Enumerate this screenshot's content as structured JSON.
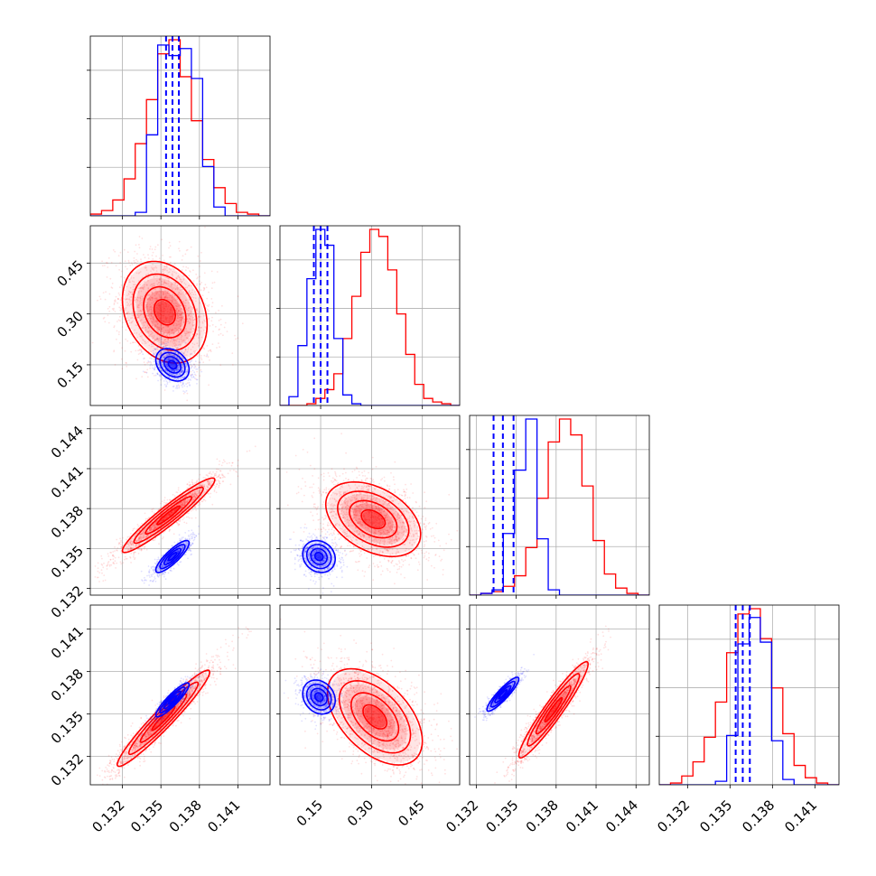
{
  "chart_data": {
    "type": "corner",
    "title": "",
    "grid": true,
    "colors": {
      "red": "#ff0000",
      "blue": "#0000ff",
      "grid": "#b0b0b0",
      "axis": "#000000"
    },
    "parameters": [
      {
        "range": [
          0.1295,
          0.1435
        ],
        "ticks": [
          0.132,
          0.135,
          0.138,
          0.141
        ],
        "tick_labels": [
          "0.132",
          "0.135",
          "0.138",
          "0.141"
        ]
      },
      {
        "range": [
          0.03,
          0.56
        ],
        "ticks": [
          0.15,
          0.3,
          0.45
        ],
        "tick_labels": [
          "0.15",
          "0.30",
          "0.45"
        ]
      },
      {
        "range": [
          0.1315,
          0.145
        ],
        "ticks": [
          0.132,
          0.135,
          0.138,
          0.141,
          0.144
        ],
        "tick_labels": [
          "0.132",
          "0.135",
          "0.138",
          "0.141",
          "0.144"
        ]
      },
      {
        "range": [
          0.13,
          0.1427
        ],
        "ticks": [
          0.132,
          0.135,
          0.138,
          0.141
        ],
        "tick_labels": [
          "0.132",
          "0.135",
          "0.138",
          "0.141"
        ]
      }
    ],
    "diagonal": [
      {
        "param": 0,
        "red_steps": [
          0.01,
          0.03,
          0.09,
          0.21,
          0.41,
          0.66,
          0.92,
          1.0,
          0.79,
          0.54,
          0.32,
          0.16,
          0.07,
          0.02,
          0.01,
          0
        ],
        "blue_steps": [
          0,
          0,
          0,
          0,
          0.02,
          0.46,
          0.97,
          0.91,
          0.95,
          0.78,
          0.28,
          0.05,
          0,
          0,
          0,
          0
        ],
        "blue_quantiles": [
          0.1354,
          0.1359,
          0.1364
        ]
      },
      {
        "param": 1,
        "red_steps": [
          0,
          0,
          0,
          0.01,
          0.04,
          0.09,
          0.18,
          0.38,
          0.62,
          0.87,
          1.0,
          0.96,
          0.77,
          0.52,
          0.29,
          0.12,
          0.04,
          0.02,
          0.01,
          0
        ],
        "blue_steps": [
          0,
          0.05,
          0.34,
          0.72,
          1.0,
          0.91,
          0.38,
          0.06,
          0.01,
          0,
          0,
          0,
          0,
          0,
          0,
          0,
          0,
          0,
          0,
          0
        ],
        "blue_quantiles": [
          0.13,
          0.15,
          0.17
        ]
      },
      {
        "param": 2,
        "red_steps": [
          0,
          0.01,
          0.02,
          0.05,
          0.11,
          0.27,
          0.55,
          0.87,
          1.0,
          0.91,
          0.62,
          0.31,
          0.12,
          0.04,
          0.01,
          0
        ],
        "blue_steps": [
          0,
          0.01,
          0.03,
          0.35,
          0.71,
          1.0,
          0.32,
          0.03,
          0,
          0,
          0,
          0,
          0,
          0,
          0,
          0
        ],
        "blue_quantiles": [
          0.1333,
          0.134,
          0.1348
        ]
      },
      {
        "param": 3,
        "red_steps": [
          0,
          0.01,
          0.05,
          0.13,
          0.27,
          0.47,
          0.75,
          0.97,
          1.0,
          0.83,
          0.55,
          0.29,
          0.11,
          0.04,
          0.01,
          0
        ],
        "blue_steps": [
          0,
          0,
          0,
          0,
          0,
          0.02,
          0.28,
          0.8,
          0.95,
          0.81,
          0.25,
          0.03,
          0,
          0,
          0,
          0
        ],
        "blue_quantiles": [
          0.1354,
          0.1359,
          0.1364
        ]
      }
    ],
    "pairs": [
      {
        "x": 0,
        "y": 1,
        "red": {
          "mean": [
            0.1353,
            0.305
          ],
          "sd": [
            0.00165,
            0.075
          ],
          "corr": -0.25,
          "n": 1700
        },
        "blue": {
          "mean": [
            0.1359,
            0.15
          ],
          "sd": [
            0.00065,
            0.024
          ],
          "corr": -0.3,
          "n": 900
        }
      },
      {
        "x": 0,
        "y": 2,
        "red": {
          "mean": [
            0.1356,
            0.1375
          ],
          "sd": [
            0.0018,
            0.0014
          ],
          "corr": 0.95,
          "n": 1700
        },
        "blue": {
          "mean": [
            0.1359,
            0.1344
          ],
          "sd": [
            0.00065,
            0.0006
          ],
          "corr": 0.85,
          "n": 900
        }
      },
      {
        "x": 0,
        "y": 3,
        "red": {
          "mean": [
            0.1352,
            0.1347
          ],
          "sd": [
            0.0018,
            0.0017
          ],
          "corr": 0.96,
          "n": 1700
        },
        "blue": {
          "mean": [
            0.1359,
            0.136
          ],
          "sd": [
            0.00065,
            0.0006
          ],
          "corr": 0.9,
          "n": 900
        }
      },
      {
        "x": 1,
        "y": 2,
        "red": {
          "mean": [
            0.305,
            0.1372
          ],
          "sd": [
            0.07,
            0.0014
          ],
          "corr": -0.4,
          "n": 1700
        },
        "blue": {
          "mean": [
            0.145,
            0.1344
          ],
          "sd": [
            0.024,
            0.0006
          ],
          "corr": -0.15,
          "n": 900
        }
      },
      {
        "x": 1,
        "y": 3,
        "red": {
          "mean": [
            0.31,
            0.1348
          ],
          "sd": [
            0.07,
            0.0017
          ],
          "corr": -0.5,
          "n": 1700
        },
        "blue": {
          "mean": [
            0.145,
            0.1362
          ],
          "sd": [
            0.024,
            0.0006
          ],
          "corr": -0.2,
          "n": 900
        }
      },
      {
        "x": 2,
        "y": 3,
        "red": {
          "mean": [
            0.1378,
            0.1353
          ],
          "sd": [
            0.0013,
            0.0017
          ],
          "corr": 0.95,
          "n": 1700
        },
        "blue": {
          "mean": [
            0.134,
            0.1364
          ],
          "sd": [
            0.0006,
            0.0006
          ],
          "corr": 0.9,
          "n": 900
        }
      }
    ]
  }
}
